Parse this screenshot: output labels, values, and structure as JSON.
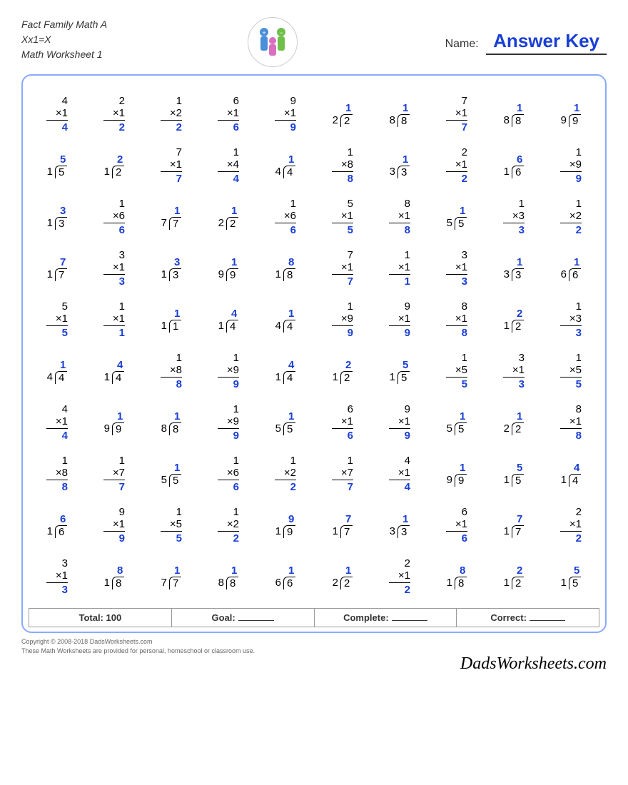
{
  "header": {
    "title1": "Fact Family Math A",
    "title2": "Xx1=X",
    "title3": "Math Worksheet 1",
    "name_label": "Name:",
    "answer_key": "Answer Key"
  },
  "colors": {
    "answer": "#1a3fd4",
    "border": "#88aaff",
    "text": "#333333"
  },
  "footer": {
    "total_label": "Total:",
    "total_value": "100",
    "goal_label": "Goal:",
    "complete_label": "Complete:",
    "correct_label": "Correct:"
  },
  "copyright": {
    "line1": "Copyright © 2008-2018 DadsWorksheets.com",
    "line2": "These Math Worksheets are provided for personal, homeschool or classroom use.",
    "brand": "DadsWorksheets.com"
  },
  "problems": [
    [
      {
        "t": "m",
        "a": 4,
        "b": 1,
        "r": 4
      },
      {
        "t": "m",
        "a": 2,
        "b": 1,
        "r": 2
      },
      {
        "t": "m",
        "a": 1,
        "b": 2,
        "r": 2
      },
      {
        "t": "m",
        "a": 6,
        "b": 1,
        "r": 6
      },
      {
        "t": "m",
        "a": 9,
        "b": 1,
        "r": 9
      },
      {
        "t": "d",
        "q": 1,
        "dv": 2,
        "dd": 2
      },
      {
        "t": "d",
        "q": 1,
        "dv": 8,
        "dd": 8
      },
      {
        "t": "m",
        "a": 7,
        "b": 1,
        "r": 7
      },
      {
        "t": "d",
        "q": 1,
        "dv": 8,
        "dd": 8
      },
      {
        "t": "d",
        "q": 1,
        "dv": 9,
        "dd": 9
      }
    ],
    [
      {
        "t": "d",
        "q": 5,
        "dv": 1,
        "dd": 5
      },
      {
        "t": "d",
        "q": 2,
        "dv": 1,
        "dd": 2
      },
      {
        "t": "m",
        "a": 7,
        "b": 1,
        "r": 7
      },
      {
        "t": "m",
        "a": 1,
        "b": 4,
        "r": 4
      },
      {
        "t": "d",
        "q": 1,
        "dv": 4,
        "dd": 4
      },
      {
        "t": "m",
        "a": 1,
        "b": 8,
        "r": 8
      },
      {
        "t": "d",
        "q": 1,
        "dv": 3,
        "dd": 3
      },
      {
        "t": "m",
        "a": 2,
        "b": 1,
        "r": 2
      },
      {
        "t": "d",
        "q": 6,
        "dv": 1,
        "dd": 6
      },
      {
        "t": "m",
        "a": 1,
        "b": 9,
        "r": 9
      }
    ],
    [
      {
        "t": "d",
        "q": 3,
        "dv": 1,
        "dd": 3
      },
      {
        "t": "m",
        "a": 1,
        "b": 6,
        "r": 6
      },
      {
        "t": "d",
        "q": 1,
        "dv": 7,
        "dd": 7
      },
      {
        "t": "d",
        "q": 1,
        "dv": 2,
        "dd": 2
      },
      {
        "t": "m",
        "a": 1,
        "b": 6,
        "r": 6
      },
      {
        "t": "m",
        "a": 5,
        "b": 1,
        "r": 5
      },
      {
        "t": "m",
        "a": 8,
        "b": 1,
        "r": 8
      },
      {
        "t": "d",
        "q": 1,
        "dv": 5,
        "dd": 5
      },
      {
        "t": "m",
        "a": 1,
        "b": 3,
        "r": 3
      },
      {
        "t": "m",
        "a": 1,
        "b": 2,
        "r": 2
      }
    ],
    [
      {
        "t": "d",
        "q": 7,
        "dv": 1,
        "dd": 7
      },
      {
        "t": "m",
        "a": 3,
        "b": 1,
        "r": 3
      },
      {
        "t": "d",
        "q": 3,
        "dv": 1,
        "dd": 3
      },
      {
        "t": "d",
        "q": 1,
        "dv": 9,
        "dd": 9
      },
      {
        "t": "d",
        "q": 8,
        "dv": 1,
        "dd": 8
      },
      {
        "t": "m",
        "a": 7,
        "b": 1,
        "r": 7
      },
      {
        "t": "m",
        "a": 1,
        "b": 1,
        "r": 1
      },
      {
        "t": "m",
        "a": 3,
        "b": 1,
        "r": 3
      },
      {
        "t": "d",
        "q": 1,
        "dv": 3,
        "dd": 3
      },
      {
        "t": "d",
        "q": 1,
        "dv": 6,
        "dd": 6
      }
    ],
    [
      {
        "t": "m",
        "a": 5,
        "b": 1,
        "r": 5
      },
      {
        "t": "m",
        "a": 1,
        "b": 1,
        "r": 1
      },
      {
        "t": "d",
        "q": 1,
        "dv": 1,
        "dd": 1
      },
      {
        "t": "d",
        "q": 4,
        "dv": 1,
        "dd": 4
      },
      {
        "t": "d",
        "q": 1,
        "dv": 4,
        "dd": 4
      },
      {
        "t": "m",
        "a": 1,
        "b": 9,
        "r": 9
      },
      {
        "t": "m",
        "a": 9,
        "b": 1,
        "r": 9
      },
      {
        "t": "m",
        "a": 8,
        "b": 1,
        "r": 8
      },
      {
        "t": "d",
        "q": 2,
        "dv": 1,
        "dd": 2
      },
      {
        "t": "m",
        "a": 1,
        "b": 3,
        "r": 3
      }
    ],
    [
      {
        "t": "d",
        "q": 1,
        "dv": 4,
        "dd": 4
      },
      {
        "t": "d",
        "q": 4,
        "dv": 1,
        "dd": 4
      },
      {
        "t": "m",
        "a": 1,
        "b": 8,
        "r": 8
      },
      {
        "t": "m",
        "a": 1,
        "b": 9,
        "r": 9
      },
      {
        "t": "d",
        "q": 4,
        "dv": 1,
        "dd": 4
      },
      {
        "t": "d",
        "q": 2,
        "dv": 1,
        "dd": 2
      },
      {
        "t": "d",
        "q": 5,
        "dv": 1,
        "dd": 5
      },
      {
        "t": "m",
        "a": 1,
        "b": 5,
        "r": 5
      },
      {
        "t": "m",
        "a": 3,
        "b": 1,
        "r": 3
      },
      {
        "t": "m",
        "a": 1,
        "b": 5,
        "r": 5
      }
    ],
    [
      {
        "t": "m",
        "a": 4,
        "b": 1,
        "r": 4
      },
      {
        "t": "d",
        "q": 1,
        "dv": 9,
        "dd": 9
      },
      {
        "t": "d",
        "q": 1,
        "dv": 8,
        "dd": 8
      },
      {
        "t": "m",
        "a": 1,
        "b": 9,
        "r": 9
      },
      {
        "t": "d",
        "q": 1,
        "dv": 5,
        "dd": 5
      },
      {
        "t": "m",
        "a": 6,
        "b": 1,
        "r": 6
      },
      {
        "t": "m",
        "a": 9,
        "b": 1,
        "r": 9
      },
      {
        "t": "d",
        "q": 1,
        "dv": 5,
        "dd": 5
      },
      {
        "t": "d",
        "q": 1,
        "dv": 2,
        "dd": 2
      },
      {
        "t": "m",
        "a": 8,
        "b": 1,
        "r": 8
      }
    ],
    [
      {
        "t": "m",
        "a": 1,
        "b": 8,
        "r": 8
      },
      {
        "t": "m",
        "a": 1,
        "b": 7,
        "r": 7
      },
      {
        "t": "d",
        "q": 1,
        "dv": 5,
        "dd": 5
      },
      {
        "t": "m",
        "a": 1,
        "b": 6,
        "r": 6
      },
      {
        "t": "m",
        "a": 1,
        "b": 2,
        "r": 2
      },
      {
        "t": "m",
        "a": 1,
        "b": 7,
        "r": 7
      },
      {
        "t": "m",
        "a": 4,
        "b": 1,
        "r": 4
      },
      {
        "t": "d",
        "q": 1,
        "dv": 9,
        "dd": 9
      },
      {
        "t": "d",
        "q": 5,
        "dv": 1,
        "dd": 5
      },
      {
        "t": "d",
        "q": 4,
        "dv": 1,
        "dd": 4
      }
    ],
    [
      {
        "t": "d",
        "q": 6,
        "dv": 1,
        "dd": 6
      },
      {
        "t": "m",
        "a": 9,
        "b": 1,
        "r": 9
      },
      {
        "t": "m",
        "a": 1,
        "b": 5,
        "r": 5
      },
      {
        "t": "m",
        "a": 1,
        "b": 2,
        "r": 2
      },
      {
        "t": "d",
        "q": 9,
        "dv": 1,
        "dd": 9
      },
      {
        "t": "d",
        "q": 7,
        "dv": 1,
        "dd": 7
      },
      {
        "t": "d",
        "q": 1,
        "dv": 3,
        "dd": 3
      },
      {
        "t": "m",
        "a": 6,
        "b": 1,
        "r": 6
      },
      {
        "t": "d",
        "q": 7,
        "dv": 1,
        "dd": 7
      },
      {
        "t": "m",
        "a": 2,
        "b": 1,
        "r": 2
      }
    ],
    [
      {
        "t": "m",
        "a": 3,
        "b": 1,
        "r": 3
      },
      {
        "t": "d",
        "q": 8,
        "dv": 1,
        "dd": 8
      },
      {
        "t": "d",
        "q": 1,
        "dv": 7,
        "dd": 7
      },
      {
        "t": "d",
        "q": 1,
        "dv": 8,
        "dd": 8
      },
      {
        "t": "d",
        "q": 1,
        "dv": 6,
        "dd": 6
      },
      {
        "t": "d",
        "q": 1,
        "dv": 2,
        "dd": 2
      },
      {
        "t": "m",
        "a": 2,
        "b": 1,
        "r": 2
      },
      {
        "t": "d",
        "q": 8,
        "dv": 1,
        "dd": 8
      },
      {
        "t": "d",
        "q": 2,
        "dv": 1,
        "dd": 2
      },
      {
        "t": "d",
        "q": 5,
        "dv": 1,
        "dd": 5
      }
    ]
  ]
}
